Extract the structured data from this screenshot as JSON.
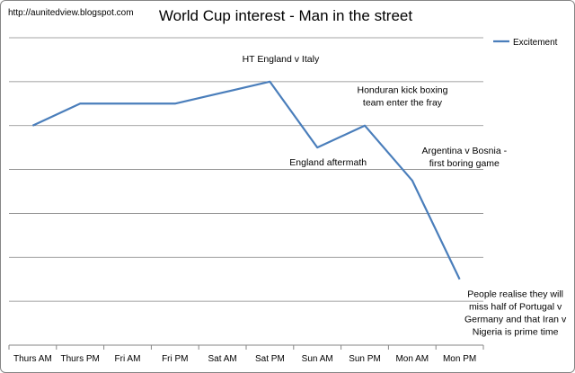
{
  "header": {
    "url_text": "http://aunitedview.blogspot.com"
  },
  "chart_data": {
    "type": "line",
    "title": "World Cup interest - Man in the street",
    "xlabel": "",
    "ylabel": "",
    "categories": [
      "Thurs AM",
      "Thurs PM",
      "Fri AM",
      "Fri PM",
      "Sat AM",
      "Sat PM",
      "Sun AM",
      "Sun PM",
      "Mon AM",
      "Mon PM"
    ],
    "series": [
      {
        "name": "Excitement",
        "color": "#4a7ebb",
        "values": [
          5,
          5.5,
          5.5,
          5.5,
          5.75,
          6,
          4.5,
          5,
          3.75,
          1.5
        ]
      }
    ],
    "ylim": [
      0,
      7
    ],
    "grid": true,
    "y_tick_labels_shown": false,
    "legend": "top-right",
    "annotations": [
      {
        "index": 5,
        "lines": [
          "HT  England v Italy"
        ]
      },
      {
        "index": 6,
        "lines": [
          "England aftermath"
        ]
      },
      {
        "index": 7,
        "lines": [
          "Honduran kick boxing",
          "team enter the fray"
        ]
      },
      {
        "index": 8,
        "lines": [
          "Argentina v Bosnia -",
          "first boring game"
        ]
      },
      {
        "index": 9,
        "lines": [
          "People realise they will",
          "miss half of Portugal v",
          "Germany and that Iran v",
          "Nigeria is prime time"
        ]
      }
    ]
  }
}
